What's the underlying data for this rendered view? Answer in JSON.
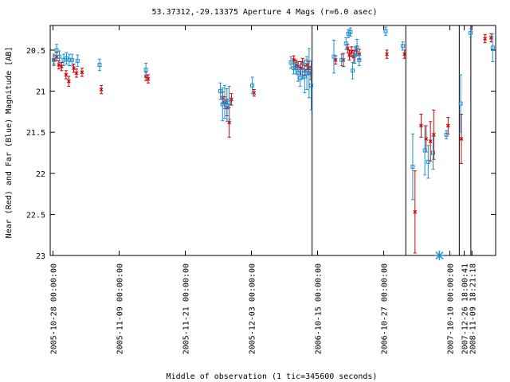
{
  "chart_data": {
    "type": "scatter",
    "title": "53.37312,-29.13375   Aperture 4 Mags (r=6.0 asec)",
    "xlabel": "Middle of observation (1 tic=345600 seconds)",
    "ylabel": "Near (Red) and Far (Blue) Magnitude [AB]",
    "ylim": [
      23,
      20.2
    ],
    "y_ticks": [
      20.5,
      21,
      21.5,
      22,
      22.5,
      23
    ],
    "y_tick_labels": [
      "20.5",
      "21",
      "21.5",
      "22",
      "22.5",
      "23"
    ],
    "x_ticks": [
      0,
      12,
      24,
      36,
      48,
      60,
      72,
      74.6,
      76
    ],
    "x_tick_labels": [
      "2005-10-28 00:00:00",
      "2005-11-09 00:00:00",
      "2005-11-21 00:00:00",
      "2005-12-03 00:00:00",
      "2006-10-15 00:00:00",
      "2006-10-27 00:00:00",
      "2007-10-10 00:00:00",
      "2007-12-26 18:00:41",
      "2008-11-09 18:21:18"
    ],
    "xlim": [
      -0.5,
      80.3
    ],
    "vertical_lines": [
      47,
      64,
      73.7,
      75.8
    ],
    "grid": false,
    "legend": "none",
    "colors": {
      "near": "#cc0000",
      "far": "#1f8fd0",
      "marker": "#1f8fd0"
    },
    "series": [
      {
        "name": "Near (Red)",
        "marker": "x",
        "x": [
          0.1,
          0.6,
          1,
          1.5,
          2.3,
          2.8,
          3.7,
          4.2,
          5.2,
          8.7,
          16.8,
          17.2,
          30.7,
          31.1,
          31.5,
          31.9,
          32.3,
          36.4,
          43.6,
          44,
          44.4,
          44.9,
          45.2,
          45.6,
          46,
          46.3,
          46.7,
          51.2,
          52.6,
          53.4,
          53.7,
          54.1,
          54.5,
          55,
          55.5,
          60.5,
          63.7,
          65.6,
          66.7,
          67.6,
          68.4,
          69,
          71.6,
          74,
          78.3,
          79.4
        ],
        "y": [
          20.62,
          20.58,
          20.68,
          20.7,
          20.8,
          20.88,
          20.72,
          20.78,
          20.77,
          20.98,
          20.82,
          20.85,
          21.08,
          21.14,
          21.2,
          21.38,
          21.1,
          21.02,
          20.62,
          20.68,
          20.7,
          20.72,
          20.66,
          20.75,
          20.68,
          20.72,
          20.78,
          20.62,
          20.62,
          20.48,
          20.56,
          20.52,
          20.58,
          20.5,
          20.55,
          20.55,
          20.55,
          22.47,
          21.42,
          21.58,
          21.61,
          21.53,
          21.42,
          21.58,
          20.36,
          20.35
        ],
        "err": [
          0.05,
          0.05,
          0.05,
          0.05,
          0.05,
          0.06,
          0.05,
          0.05,
          0.05,
          0.05,
          0.05,
          0.05,
          0.07,
          0.07,
          0.1,
          0.18,
          0.07,
          0.04,
          0.05,
          0.06,
          0.06,
          0.08,
          0.06,
          0.06,
          0.06,
          0.08,
          0.08,
          0.05,
          0.08,
          0.05,
          0.06,
          0.06,
          0.08,
          0.05,
          0.06,
          0.05,
          0.05,
          0.5,
          0.14,
          0.16,
          0.24,
          0.3,
          0.1,
          0.3,
          0.05,
          0.05
        ]
      },
      {
        "name": "Far (Blue)",
        "marker": "square",
        "x": [
          0.2,
          0.7,
          1.2,
          2,
          2.5,
          3,
          3.5,
          4.5,
          8.5,
          16.9,
          30.4,
          30.8,
          31.2,
          31.6,
          32,
          36.2,
          43.2,
          43.7,
          44.1,
          44.5,
          44.9,
          45.3,
          45.7,
          46.1,
          46.5,
          46.9,
          51,
          52.4,
          53.2,
          53.6,
          54,
          54.4,
          54.8,
          55.2,
          55.6,
          60.4,
          63.5,
          65.3,
          67.5,
          68.1,
          69,
          71.4,
          74,
          75.8,
          79.8
        ],
        "y": [
          20.62,
          20.5,
          20.58,
          20.62,
          20.6,
          20.62,
          20.62,
          20.63,
          20.68,
          20.74,
          21.0,
          21.16,
          21.13,
          21.17,
          21.14,
          20.93,
          20.65,
          20.72,
          20.72,
          20.78,
          20.84,
          20.75,
          20.82,
          20.78,
          20.78,
          20.93,
          20.58,
          20.62,
          20.42,
          20.3,
          20.28,
          20.75,
          20.56,
          20.47,
          20.62,
          20.27,
          20.45,
          21.92,
          21.72,
          21.86,
          21.75,
          21.53,
          21.15,
          20.29,
          20.47
        ],
        "err": [
          0.07,
          0.07,
          0.07,
          0.07,
          0.07,
          0.07,
          0.07,
          0.07,
          0.07,
          0.08,
          0.1,
          0.2,
          0.2,
          0.2,
          0.2,
          0.1,
          0.07,
          0.07,
          0.07,
          0.1,
          0.1,
          0.1,
          0.2,
          0.2,
          0.3,
          0.3,
          0.2,
          0.07,
          0.07,
          0.05,
          0.05,
          0.1,
          0.1,
          0.1,
          0.07,
          0.05,
          0.05,
          0.4,
          0.3,
          0.2,
          0.2,
          0.05,
          0.35,
          0.05,
          0.17
        ]
      }
    ],
    "special_marker": {
      "symbol": "asterisk",
      "x": 70.1,
      "y": 23
    }
  }
}
